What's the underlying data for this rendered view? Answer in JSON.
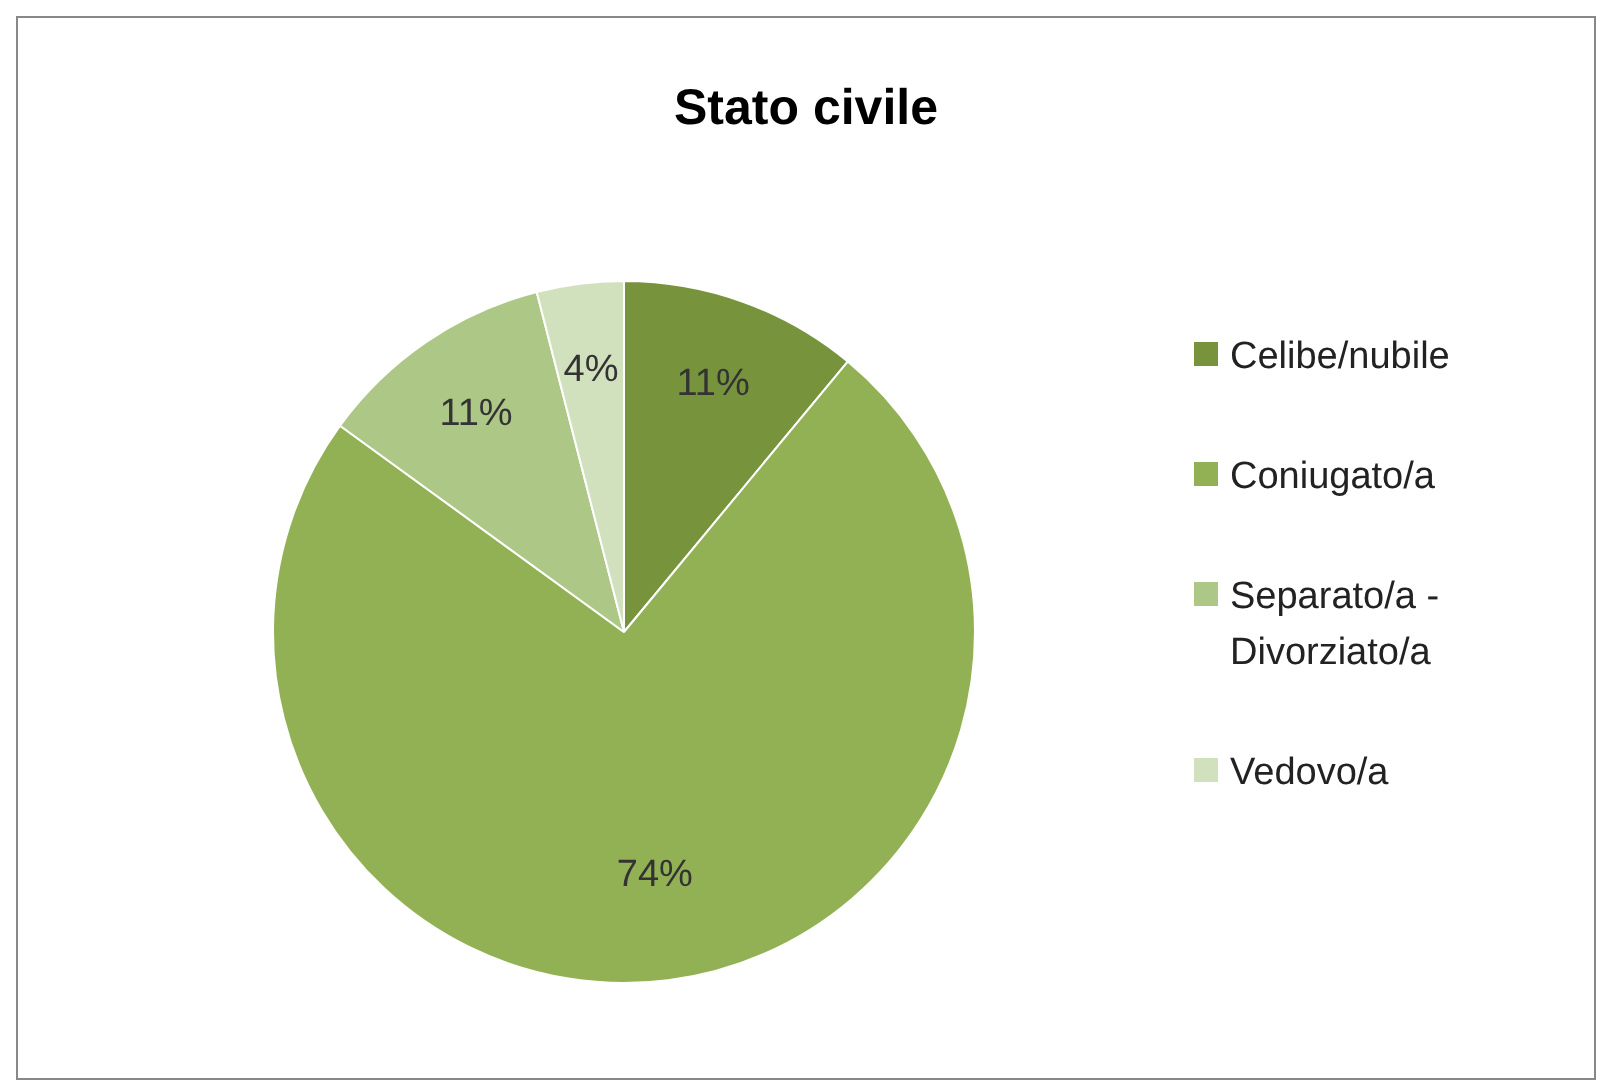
{
  "chart_data": {
    "type": "pie",
    "title": "Stato civile",
    "categories": [
      "Celibe/nubile",
      "Coniugato/a",
      "Separato/a - Divorziato/a",
      "Vedovo/a"
    ],
    "values": [
      11,
      74,
      11,
      4
    ],
    "colors": [
      "#77933c",
      "#92b155",
      "#adc786",
      "#d1e0bd"
    ],
    "value_labels": [
      "11%",
      "74%",
      "11%",
      "4%"
    ],
    "legend": "right"
  }
}
